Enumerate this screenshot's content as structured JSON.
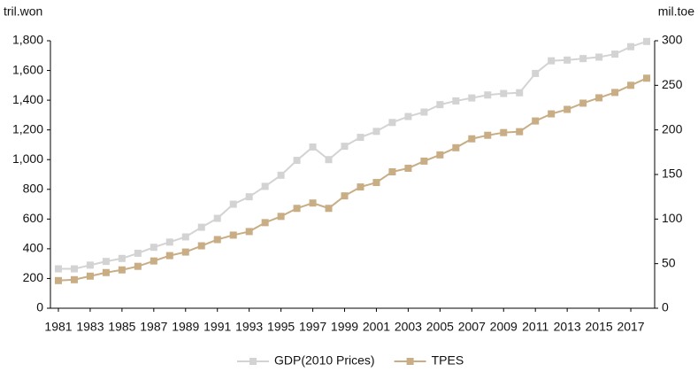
{
  "chart_data": {
    "type": "line",
    "y_label": "tril.won",
    "y2_label": "mil.toe",
    "x": [
      1981,
      1982,
      1983,
      1984,
      1985,
      1986,
      1987,
      1988,
      1989,
      1990,
      1991,
      1992,
      1993,
      1994,
      1995,
      1996,
      1997,
      1998,
      1999,
      2000,
      2001,
      2002,
      2003,
      2004,
      2005,
      2006,
      2007,
      2008,
      2009,
      2010,
      2011,
      2012,
      2013,
      2014,
      2015,
      2016,
      2017,
      2018
    ],
    "xlim": [
      1980.5,
      2018.5
    ],
    "xticks": [
      1981,
      1983,
      1985,
      1987,
      1989,
      1991,
      1993,
      1995,
      1997,
      1999,
      2001,
      2003,
      2005,
      2007,
      2009,
      2011,
      2013,
      2015,
      2017
    ],
    "ylim": [
      0,
      1800
    ],
    "yticks": [
      0,
      200,
      400,
      600,
      800,
      {
        "value": 1000,
        "label": "1,000"
      },
      {
        "value": 1200,
        "label": "1,200"
      },
      {
        "value": 1400,
        "label": "1,400"
      },
      {
        "value": 1600,
        "label": "1,600"
      },
      {
        "value": 1800,
        "label": "1,800"
      }
    ],
    "y2lim": [
      0,
      300
    ],
    "y2ticks": [
      0,
      50,
      100,
      150,
      200,
      250,
      300
    ],
    "legend": "bottom",
    "series": [
      {
        "name": "GDP(2010 Prices)",
        "color": "#d3d3d3",
        "values": [
          265,
          265,
          290,
          315,
          335,
          370,
          410,
          445,
          480,
          545,
          605,
          700,
          750,
          820,
          895,
          995,
          1085,
          1000,
          1090,
          1150,
          1190,
          1250,
          1290,
          1320,
          1370,
          1395,
          1415,
          1435,
          1445,
          1450,
          1580,
          1665,
          1670,
          1680,
          1690,
          1710,
          1760,
          1795
        ]
      },
      {
        "name": "TPES",
        "color": "#c8ad85",
        "axis": "y2",
        "values": [
          31,
          32,
          36,
          40,
          43,
          47,
          53,
          59,
          63,
          70,
          77,
          82,
          86,
          96,
          103,
          112,
          118,
          112,
          126,
          136,
          141,
          153,
          157,
          165,
          172,
          180,
          190,
          194,
          197,
          198,
          210,
          218,
          223,
          230,
          236,
          242,
          250,
          258
        ]
      }
    ]
  }
}
